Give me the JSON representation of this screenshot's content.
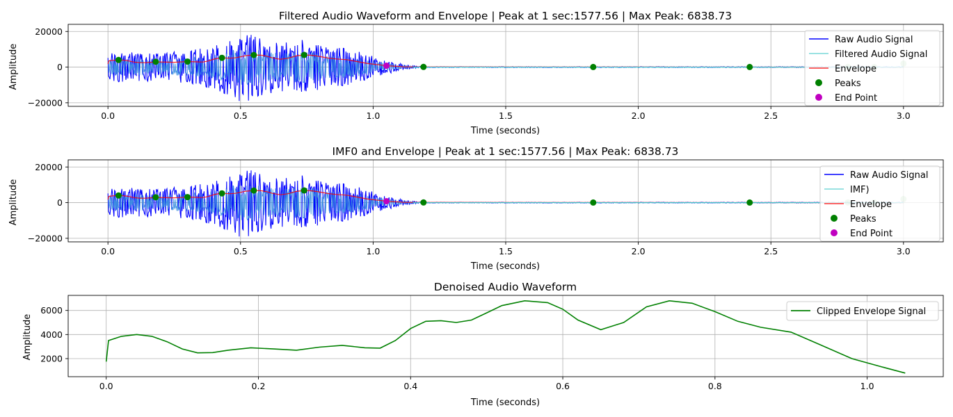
{
  "chart_data": [
    {
      "type": "line",
      "title": "Filtered Audio Waveform and Envelope | Peak at 1 sec:1577.56 | Max Peak: 6838.73",
      "xlabel": "Time (seconds)",
      "ylabel": "Amplitude",
      "xlim": [
        -0.15,
        3.15
      ],
      "ylim": [
        -22000,
        24000
      ],
      "xticks": [
        0.0,
        0.5,
        1.0,
        1.5,
        2.0,
        2.5,
        3.0
      ],
      "xtick_labels": [
        "0.0",
        "0.5",
        "1.0",
        "1.5",
        "2.0",
        "2.5",
        "3.0"
      ],
      "yticks": [
        -20000,
        0,
        20000
      ],
      "ytick_labels": [
        "−20000",
        "0",
        "20000"
      ],
      "grid": true,
      "legend_position": "top-right",
      "series": [
        {
          "name": "Raw Audio Signal",
          "color": "#0000ff",
          "style": "waveform",
          "envelope_x": [
            0.0,
            0.04,
            0.1,
            0.18,
            0.3,
            0.43,
            0.5,
            0.55,
            0.65,
            0.74,
            0.85,
            0.95,
            1.05,
            1.1,
            1.15,
            1.2
          ],
          "envelope_y": [
            7000,
            9000,
            8500,
            8000,
            9000,
            14000,
            20000,
            18000,
            14000,
            16000,
            12000,
            9000,
            4000,
            2000,
            800,
            200
          ]
        },
        {
          "name": "Filtered Audio Signal",
          "color": "#40c8c8",
          "style": "line"
        },
        {
          "name": "Envelope",
          "color": "#ff0000",
          "style": "line"
        },
        {
          "name": "Peaks",
          "color": "#008000",
          "style": "marker",
          "x": [
            0.04,
            0.18,
            0.3,
            0.43,
            0.55,
            0.74,
            1.19,
            1.83,
            2.42,
            2.79,
            2.89,
            3.0
          ],
          "y": [
            4000,
            3000,
            3100,
            5200,
            6800,
            6840,
            100,
            50,
            50,
            100,
            50,
            2000
          ]
        },
        {
          "name": "End Point",
          "color": "#c000c0",
          "style": "marker",
          "x": [
            1.05
          ],
          "y": [
            800
          ]
        }
      ]
    },
    {
      "type": "line",
      "title": "IMF0 and Envelope | Peak at 1 sec:1577.56 | Max Peak: 6838.73",
      "xlabel": "Time (seconds)",
      "ylabel": "Amplitude",
      "xlim": [
        -0.15,
        3.15
      ],
      "ylim": [
        -22000,
        24000
      ],
      "xticks": [
        0.0,
        0.5,
        1.0,
        1.5,
        2.0,
        2.5,
        3.0
      ],
      "xtick_labels": [
        "0.0",
        "0.5",
        "1.0",
        "1.5",
        "2.0",
        "2.5",
        "3.0"
      ],
      "yticks": [
        -20000,
        0,
        20000
      ],
      "ytick_labels": [
        "−20000",
        "0",
        "20000"
      ],
      "grid": true,
      "legend_position": "top-right",
      "series": [
        {
          "name": "Raw Audio Signal",
          "color": "#0000ff",
          "style": "waveform",
          "envelope_x": [
            0.0,
            0.04,
            0.1,
            0.18,
            0.3,
            0.43,
            0.5,
            0.55,
            0.65,
            0.74,
            0.85,
            0.95,
            1.05,
            1.1,
            1.15,
            1.2
          ],
          "envelope_y": [
            7000,
            9000,
            8500,
            8000,
            9000,
            14000,
            20000,
            18000,
            14000,
            16000,
            12000,
            9000,
            4000,
            2000,
            800,
            200
          ]
        },
        {
          "name": "IMF)",
          "color": "#40c8c8",
          "style": "line"
        },
        {
          "name": "Envelope",
          "color": "#ff0000",
          "style": "line"
        },
        {
          "name": "Peaks",
          "color": "#008000",
          "style": "marker",
          "x": [
            0.04,
            0.18,
            0.3,
            0.43,
            0.55,
            0.74,
            1.19,
            1.83,
            2.42,
            2.79,
            2.89,
            3.0
          ],
          "y": [
            4000,
            3000,
            3100,
            5200,
            6800,
            6840,
            100,
            50,
            50,
            100,
            50,
            2000
          ]
        },
        {
          "name": "End Point",
          "color": "#c000c0",
          "style": "marker",
          "x": [
            1.05
          ],
          "y": [
            800
          ]
        }
      ]
    },
    {
      "type": "line",
      "title": "Denoised Audio Waveform",
      "xlabel": "Time (seconds)",
      "ylabel": "Amplitude",
      "xlim": [
        -0.05,
        1.1
      ],
      "ylim": [
        500,
        7250
      ],
      "xticks": [
        0.0,
        0.2,
        0.4,
        0.6,
        0.8,
        1.0
      ],
      "xtick_labels": [
        "0.0",
        "0.2",
        "0.4",
        "0.6",
        "0.8",
        "1.0"
      ],
      "yticks": [
        2000,
        4000,
        6000
      ],
      "ytick_labels": [
        "2000",
        "4000",
        "6000"
      ],
      "grid": true,
      "legend_position": "top-right",
      "series": [
        {
          "name": "Clipped Envelope Signal",
          "color": "#008000",
          "style": "line",
          "x": [
            0.0,
            0.003,
            0.02,
            0.04,
            0.06,
            0.08,
            0.1,
            0.12,
            0.14,
            0.16,
            0.19,
            0.22,
            0.25,
            0.28,
            0.31,
            0.34,
            0.36,
            0.38,
            0.4,
            0.42,
            0.44,
            0.46,
            0.48,
            0.5,
            0.52,
            0.55,
            0.58,
            0.6,
            0.62,
            0.65,
            0.68,
            0.71,
            0.74,
            0.77,
            0.8,
            0.83,
            0.86,
            0.9,
            0.94,
            0.98,
            1.02,
            1.05
          ],
          "y": [
            1750,
            3500,
            3850,
            4000,
            3850,
            3400,
            2800,
            2480,
            2500,
            2700,
            2900,
            2800,
            2700,
            2950,
            3100,
            2900,
            2870,
            3500,
            4500,
            5100,
            5150,
            5000,
            5200,
            5800,
            6400,
            6800,
            6650,
            6100,
            5200,
            4400,
            5000,
            6300,
            6800,
            6600,
            5900,
            5100,
            4600,
            4200,
            3100,
            2000,
            1300,
            800
          ]
        }
      ]
    }
  ]
}
